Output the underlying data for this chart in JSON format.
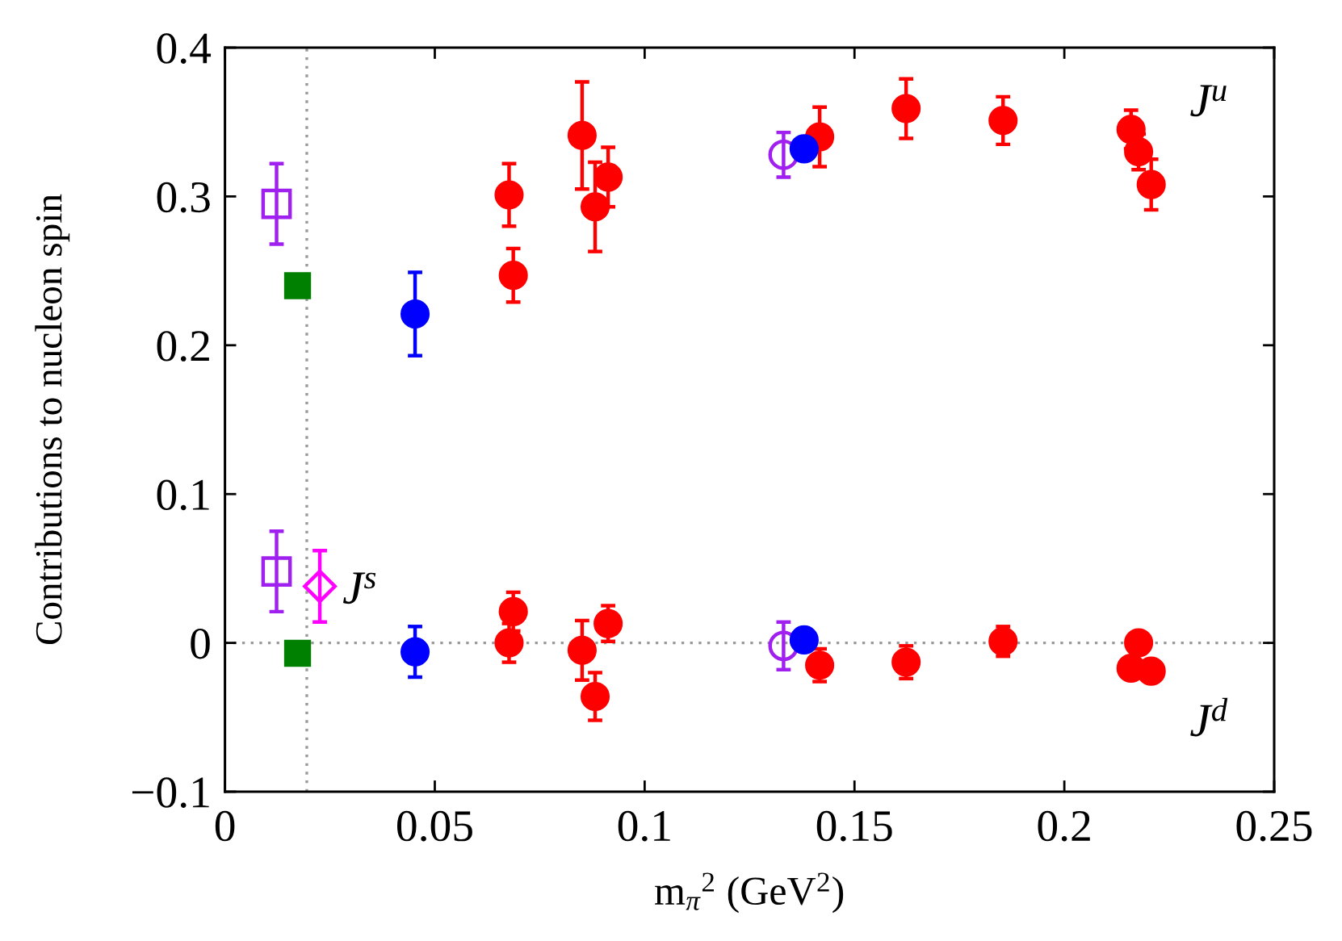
{
  "chart_data": {
    "type": "scatter",
    "xlabel": "m$_{π}$$^{2}$ (GeV$^{2}$)",
    "ylabel": "Contributions to nucleon spin",
    "xlim": [
      0,
      0.25
    ],
    "ylim": [
      -0.1,
      0.4
    ],
    "xticks": [
      0,
      0.05,
      0.1,
      0.15,
      0.2,
      0.25
    ],
    "yticks": [
      {
        "value": -0.1,
        "label": "−0.1"
      },
      0,
      0.1,
      0.2,
      0.3,
      0.4
    ],
    "series": [
      {
        "color": "#ff0000",
        "marker": "circle",
        "x": [
          0.0677,
          0.0687,
          0.0851,
          0.0882,
          0.0913,
          0.1417,
          0.1623,
          0.1854,
          0.2159,
          0.2177,
          0.2207,
          0.0677,
          0.0687,
          0.0851,
          0.0882,
          0.0913,
          0.1417,
          0.1623,
          0.1854,
          0.2159,
          0.2177,
          0.2207
        ],
        "values": [
          0.301,
          0.247,
          0.341,
          0.293,
          0.313,
          0.34,
          0.359,
          0.351,
          0.345,
          0.33,
          0.308,
          0.0,
          0.021,
          -0.005,
          -0.036,
          0.013,
          -0.015,
          -0.013,
          0.001,
          -0.017,
          0.0,
          -0.019
        ],
        "errors": [
          0.021,
          0.018,
          0.036,
          0.03,
          0.02,
          0.02,
          0.02,
          0.016,
          0.013,
          0.012,
          0.017,
          0.013,
          0.013,
          0.02,
          0.016,
          0.012,
          0.011,
          0.011,
          0.01,
          null,
          null,
          null
        ]
      },
      {
        "color": "#a020f0",
        "marker": "circle-open",
        "x": [
          0.1331,
          0.1331
        ],
        "values": [
          0.328,
          -0.002
        ],
        "errors": [
          0.015,
          0.016
        ]
      },
      {
        "color": "#a020f0",
        "marker": "square-open",
        "x": [
          0.0123,
          0.0123
        ],
        "values": [
          0.295,
          0.048
        ],
        "errors": [
          0.027,
          0.027
        ]
      },
      {
        "color": "#008000",
        "marker": "square",
        "x": [
          0.0173,
          0.0173
        ],
        "values": [
          0.24,
          -0.007
        ]
      },
      {
        "color": "#ff00ff",
        "marker": "diamond-open",
        "x": [
          0.0226
        ],
        "values": [
          0.038
        ],
        "errors": [
          0.024
        ]
      },
      {
        "color": "#0000ff",
        "marker": "circle",
        "x": [
          0.0453,
          0.138,
          0.0453,
          0.138
        ],
        "values": [
          0.221,
          0.332,
          -0.006,
          0.002
        ],
        "errors": [
          0.028,
          null,
          0.017,
          null
        ]
      }
    ],
    "ref_lines": [
      {
        "axis": "x",
        "value": 0.0195,
        "color": "#999999",
        "line_style": "dotted"
      },
      {
        "axis": "y",
        "value": 0,
        "color": "#999999",
        "line_style": "dotted"
      }
    ],
    "annotations": [
      "J$^{u}$",
      "J$^{d}$",
      "J$^{s}$"
    ]
  }
}
